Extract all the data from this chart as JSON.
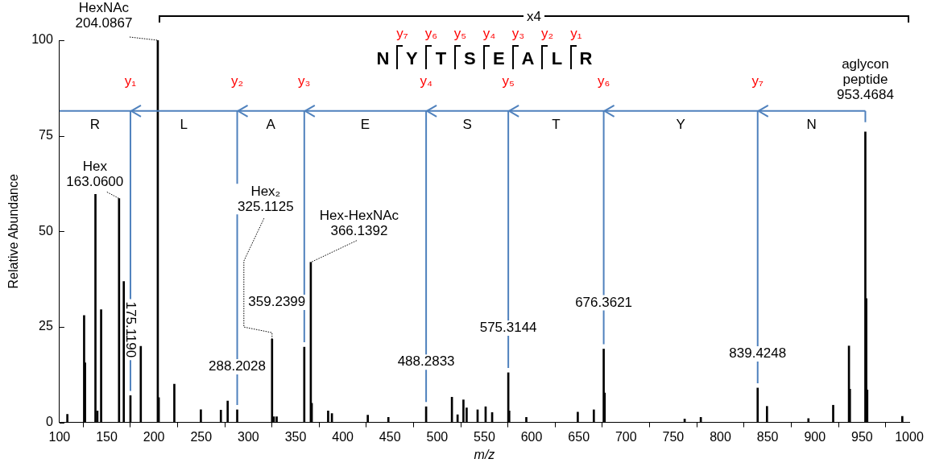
{
  "chart_data": {
    "type": "bar",
    "xlabel": "m/z",
    "ylabel": "Relative Abundance",
    "xlim": [
      100,
      1000
    ],
    "xticks": [
      100,
      150,
      200,
      250,
      300,
      350,
      400,
      450,
      500,
      550,
      600,
      650,
      700,
      750,
      800,
      850,
      900,
      950,
      1000
    ],
    "ylim": [
      0,
      100
    ],
    "yticks": [
      0,
      25,
      50,
      75,
      100
    ],
    "grid": false,
    "color": "#000000",
    "x": [
      108.3,
      126.05,
      127.05,
      138.05,
      140.1,
      144.07,
      163.06,
      168.07,
      175.119,
      186.08,
      204.0867,
      205.09,
      221.6,
      249.7,
      270.9,
      278.1,
      288.2028,
      325.1125,
      327,
      330,
      359.2399,
      366.1392,
      367.14,
      384.5,
      388.5,
      426.5,
      448.3,
      488.2833,
      515.6,
      521.6,
      527.8,
      531.2,
      542.8,
      551.3,
      558.2,
      575.3144,
      576.3,
      594.4,
      648.9,
      665.9,
      676.3621,
      677.37,
      762.1,
      779.2,
      839.4248,
      849.3,
      893.2,
      919.4,
      936.1,
      937.1,
      953.4684,
      954.47,
      955.47,
      992.6
    ],
    "values": [
      2.1,
      28,
      15.6,
      59.7,
      3,
      29.5,
      58.6,
      36.9,
      7,
      19.9,
      100,
      6.5,
      10,
      3.3,
      3.2,
      5.6,
      3.3,
      21.8,
      1.5,
      1.5,
      19.7,
      41.9,
      5,
      3,
      2.3,
      1.9,
      1.3,
      4.1,
      6.6,
      2,
      5.9,
      3.8,
      3.3,
      4.1,
      2.6,
      13,
      3,
      1.3,
      2.7,
      3.3,
      19.2,
      7.7,
      0.9,
      1.3,
      9,
      4.2,
      1,
      4.5,
      20,
      8.7,
      76,
      32.4,
      8.5,
      1.6
    ],
    "ref_lines": [
      {
        "axis": "x",
        "value": 175.119,
        "label": "y₁",
        "color": "#4f81bd"
      },
      {
        "axis": "x",
        "value": 288.2028,
        "label": "y₂",
        "color": "#4f81bd"
      },
      {
        "axis": "x",
        "value": 359.2399,
        "label": "y₃",
        "color": "#4f81bd"
      },
      {
        "axis": "x",
        "value": 488.2833,
        "label": "y₄",
        "color": "#4f81bd"
      },
      {
        "axis": "x",
        "value": 575.3144,
        "label": "y₅",
        "color": "#4f81bd"
      },
      {
        "axis": "x",
        "value": 676.3621,
        "label": "y₆",
        "color": "#4f81bd"
      },
      {
        "axis": "x",
        "value": 839.4248,
        "label": "y₇",
        "color": "#4f81bd"
      },
      {
        "axis": "y",
        "value": 81.5,
        "label": null,
        "color": "#4f81bd"
      }
    ],
    "annotations": [
      {
        "text": "HexNAc\n204.0867",
        "x": 204.0867,
        "y": 100
      },
      {
        "text": "Hex\n163.0600",
        "x": 163.06,
        "y": 58.6
      },
      {
        "text": "175.1190",
        "x": 175.119,
        "y": 7
      },
      {
        "text": "Hex₂\n325.1125",
        "x": 325.1125,
        "y": 21.8
      },
      {
        "text": "Hex-HexNAc\n366.1392",
        "x": 366.1392,
        "y": 41.9
      },
      {
        "text": "288.2028",
        "x": 288.2028,
        "y": 3.3
      },
      {
        "text": "359.2399",
        "x": 359.2399,
        "y": 19.7
      },
      {
        "text": "488.2833",
        "x": 488.2833,
        "y": 4.1
      },
      {
        "text": "575.3144",
        "x": 575.3144,
        "y": 13
      },
      {
        "text": "676.3621",
        "x": 676.3621,
        "y": 19.2
      },
      {
        "text": "839.4248",
        "x": 839.4248,
        "y": 9
      },
      {
        "text": "aglycon\npeptide\n953.4684",
        "x": 953.4684,
        "y": 76
      },
      "x4",
      "N",
      "Y",
      "T",
      "S",
      "E",
      "A",
      "L",
      "R",
      "R",
      "L",
      "A",
      "E",
      "S",
      "T",
      "Y",
      "N"
    ]
  }
}
